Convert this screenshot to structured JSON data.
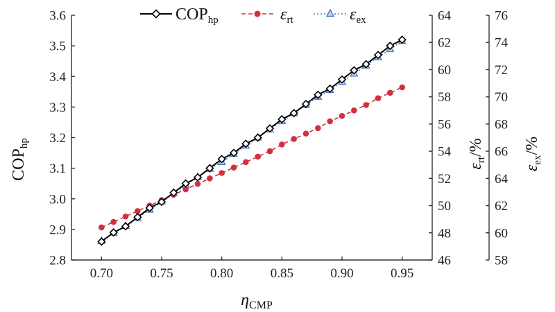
{
  "chart_data": {
    "type": "line",
    "x": [
      0.7,
      0.71,
      0.72,
      0.73,
      0.74,
      0.75,
      0.76,
      0.77,
      0.78,
      0.79,
      0.8,
      0.81,
      0.82,
      0.83,
      0.84,
      0.85,
      0.86,
      0.87,
      0.88,
      0.89,
      0.9,
      0.91,
      0.92,
      0.93,
      0.94,
      0.95
    ],
    "xlim": [
      0.675,
      0.975
    ],
    "xticks": [
      "0.70",
      "0.75",
      "0.80",
      "0.85",
      "0.90",
      "0.95"
    ],
    "xlabel": {
      "main": "η",
      "sub": "CMP"
    },
    "axes": {
      "left": {
        "label_main": "COP",
        "label_sub": "hp",
        "ylim": [
          2.8,
          3.6
        ],
        "ticks": [
          "2.8",
          "2.9",
          "3.0",
          "3.1",
          "3.2",
          "3.3",
          "3.4",
          "3.5",
          "3.6"
        ]
      },
      "right1": {
        "label_main": "ε",
        "label_sub": "rt",
        "label_suffix": "/%",
        "ylim": [
          46,
          64
        ],
        "ticks": [
          "46",
          "48",
          "50",
          "52",
          "54",
          "56",
          "58",
          "60",
          "62",
          "64"
        ]
      },
      "right2": {
        "label_main": "ε",
        "label_sub": "ex",
        "label_suffix": "/%",
        "ylim": [
          58,
          76
        ],
        "ticks": [
          "58",
          "60",
          "62",
          "64",
          "66",
          "68",
          "70",
          "72",
          "74",
          "76"
        ]
      }
    },
    "series": [
      {
        "name": "COP",
        "name_sub": "hp",
        "axis": "left",
        "color": "#000000",
        "marker": "diamond",
        "dash": "solid",
        "values": [
          2.86,
          2.89,
          2.91,
          2.94,
          2.97,
          2.99,
          3.02,
          3.05,
          3.07,
          3.1,
          3.13,
          3.15,
          3.18,
          3.2,
          3.23,
          3.26,
          3.28,
          3.31,
          3.34,
          3.36,
          3.39,
          3.42,
          3.44,
          3.47,
          3.5,
          3.52
        ]
      },
      {
        "name": "ε",
        "name_sub": "rt",
        "axis": "right1",
        "color": "#d0323d",
        "marker": "circle",
        "dash": "dashed",
        "values": [
          48.4,
          48.8,
          49.2,
          49.6,
          50.0,
          50.4,
          50.8,
          51.2,
          51.6,
          52.0,
          52.4,
          52.8,
          53.2,
          53.6,
          54.0,
          54.5,
          54.9,
          55.3,
          55.7,
          56.2,
          56.6,
          57.0,
          57.4,
          57.9,
          58.3,
          58.7
        ]
      },
      {
        "name": "ε",
        "name_sub": "ex",
        "axis": "right2",
        "color": "#4a78c0",
        "marker": "triangle",
        "dash": "dotted",
        "values": [
          59.4,
          60.0,
          60.5,
          61.1,
          61.7,
          62.3,
          62.9,
          63.5,
          64.1,
          64.7,
          65.2,
          65.8,
          66.4,
          67.0,
          67.6,
          68.2,
          68.8,
          69.4,
          70.0,
          70.5,
          71.1,
          71.7,
          72.3,
          72.9,
          73.5,
          74.1
        ]
      }
    ],
    "legend_position": "top",
    "grid": false
  }
}
